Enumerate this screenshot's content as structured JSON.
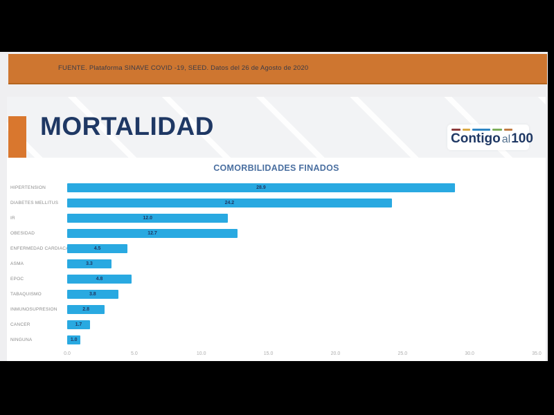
{
  "colors": {
    "accent_orange": "#CE7630",
    "navy": "#1F3864",
    "bar_blue": "#29A9E1",
    "chart_title_blue": "#4A6FA0",
    "category_gray": "#8A8A8A",
    "tick_gray": "#ACACAC",
    "page_gray": "#EFEFF1",
    "slide_gray": "#F2F3F5",
    "source_text_color": "#3A3A46"
  },
  "banner": {
    "source_text": "FUENTE. Plataforma SINAVE COVID -19, SEED. Datos del 26 de Agosto de 2020"
  },
  "slide": {
    "title": "MORTALIDAD"
  },
  "logo": {
    "text_main": "Contigo",
    "text_mid": "al",
    "text_num": "100",
    "dash_colors": [
      "#8E3B3B",
      "#D9A843",
      "#2F86C4",
      "#7CAE5A",
      "#C07A42"
    ],
    "dash_widths": [
      13,
      11,
      26,
      14,
      12
    ]
  },
  "chart_data": {
    "type": "bar",
    "orientation": "horizontal",
    "title": "COMORBILIDADES FINADOS",
    "categories": [
      "HIPERTENSION",
      "DIABETES MELLITUS",
      "IR",
      "OBESIDAD",
      "ENFERMEDAD CARDIACA",
      "ASMA",
      "EPOC",
      "TABAQUISMO",
      "INMUNOSUPRESION",
      "CANCER",
      "NINGUNA"
    ],
    "values": [
      28.9,
      24.2,
      12.0,
      12.7,
      4.5,
      3.3,
      4.8,
      3.8,
      2.8,
      1.7,
      1.0
    ],
    "xlabel": "",
    "ylabel": "",
    "xlim": [
      0,
      35
    ],
    "x_ticks": [
      "0.0",
      "5.0",
      "10.0",
      "15.0",
      "20.0",
      "25.0",
      "30.0",
      "35.0"
    ],
    "grid": false,
    "legend": false,
    "value_labels": "inside-center"
  }
}
